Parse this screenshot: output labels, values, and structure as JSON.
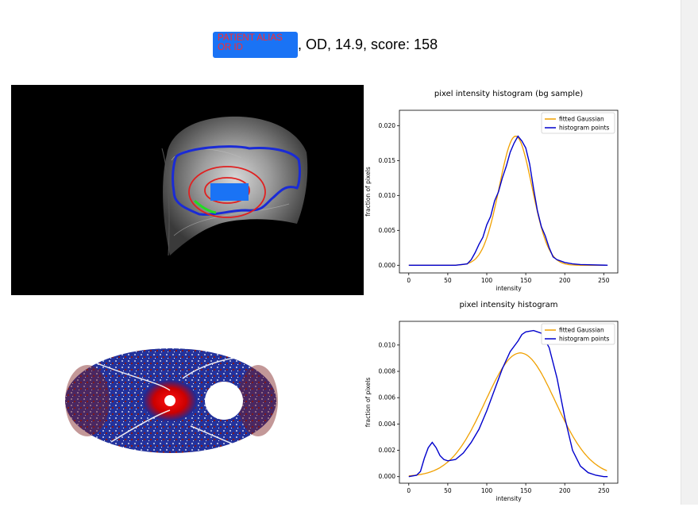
{
  "header": {
    "redaction_label": "PATIENT ALIAS OR ID",
    "suffix": ", OD, 14.9, score: 158"
  },
  "colors": {
    "redaction_fill": "#1a73f5",
    "redaction_text": "#ff2a2a",
    "contour_outer": "#1a2bd6",
    "contour_rings": "#e02020",
    "gaussian": "#f0a000",
    "histogram": "#0000cc"
  },
  "images": {
    "fundus": {
      "description_icon": "fundus-image-icon"
    },
    "heatmap": {
      "description_icon": "heatmap-image-icon"
    }
  },
  "chart_data": [
    {
      "type": "line",
      "title": "pixel intensity histogram (bg sample)",
      "xlabel": "intensity",
      "ylabel": "fraction of pixels",
      "xlim": [
        -12,
        268
      ],
      "ylim": [
        -0.0011,
        0.0222
      ],
      "xticks": [
        "0",
        "50",
        "100",
        "150",
        "200",
        "250"
      ],
      "yticks": [
        "0.000",
        "0.005",
        "0.010",
        "0.015",
        "0.020"
      ],
      "legend": {
        "position": "top-right",
        "entries": [
          "fitted Gaussian",
          "histogram points"
        ]
      },
      "series": [
        {
          "name": "fitted Gaussian",
          "gaussian": {
            "mean": 137,
            "sd": 21,
            "peak": 0.0185
          },
          "x_range": [
            0,
            255
          ]
        },
        {
          "name": "histogram points",
          "x": [
            0,
            60,
            75,
            80,
            85,
            90,
            95,
            100,
            105,
            110,
            115,
            120,
            125,
            130,
            135,
            140,
            145,
            150,
            155,
            160,
            165,
            170,
            175,
            180,
            185,
            190,
            200,
            210,
            220,
            255
          ],
          "y": [
            0,
            0,
            0.0002,
            0.0008,
            0.0018,
            0.003,
            0.004,
            0.0058,
            0.007,
            0.0092,
            0.0105,
            0.0125,
            0.0142,
            0.0162,
            0.0175,
            0.0185,
            0.0178,
            0.0168,
            0.0145,
            0.011,
            0.0078,
            0.0055,
            0.0042,
            0.0025,
            0.0012,
            0.0008,
            0.0004,
            0.0002,
            0.0001,
            0
          ]
        }
      ]
    },
    {
      "type": "line",
      "title": "pixel intensity histogram",
      "xlabel": "intensity",
      "ylabel": "fraction of pixels",
      "xlim": [
        -12,
        268
      ],
      "ylim": [
        -0.0005,
        0.0118
      ],
      "xticks": [
        "0",
        "50",
        "100",
        "150",
        "200",
        "250"
      ],
      "yticks": [
        "0.000",
        "0.002",
        "0.004",
        "0.006",
        "0.008",
        "0.010"
      ],
      "legend": {
        "position": "top-right",
        "entries": [
          "fitted Gaussian",
          "histogram points"
        ]
      },
      "series": [
        {
          "name": "fitted Gaussian",
          "gaussian": {
            "mean": 143,
            "sd": 45,
            "peak": 0.0094
          },
          "x_range": [
            0,
            255
          ]
        },
        {
          "name": "histogram points",
          "x": [
            0,
            10,
            15,
            20,
            25,
            30,
            35,
            40,
            45,
            50,
            60,
            70,
            80,
            90,
            100,
            110,
            120,
            130,
            140,
            145,
            150,
            160,
            170,
            180,
            190,
            200,
            210,
            220,
            230,
            240,
            250,
            255
          ],
          "y": [
            0,
            0.0001,
            0.0004,
            0.0014,
            0.0022,
            0.0026,
            0.0022,
            0.0016,
            0.0013,
            0.0012,
            0.0013,
            0.0018,
            0.0026,
            0.0036,
            0.005,
            0.0066,
            0.0082,
            0.0095,
            0.0103,
            0.0108,
            0.011,
            0.0111,
            0.0109,
            0.0098,
            0.0075,
            0.0045,
            0.002,
            0.0008,
            0.0003,
            0.0001,
            0,
            0
          ]
        }
      ]
    }
  ]
}
